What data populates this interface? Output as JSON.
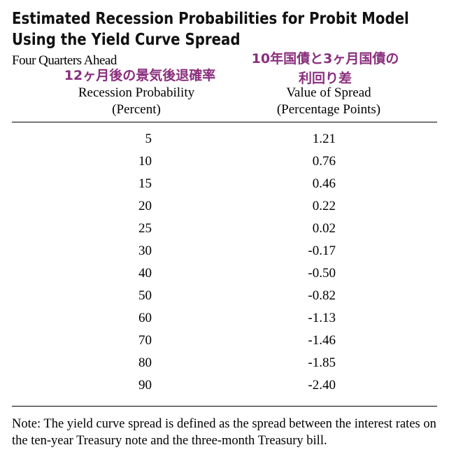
{
  "title": {
    "line1": "Estimated Recession Probabilities for Probit Model",
    "line2": "Using the Yield Curve Spread"
  },
  "subhead": "Four Quarters Ahead",
  "annotations": {
    "left": "12ヶ月後の景気後退確率",
    "right_line1": "10年国債と3ヶ月国債の",
    "right_line2": "利回り差"
  },
  "colors": {
    "annotation": "#8a2f7d",
    "text": "#000000"
  },
  "columns": {
    "probability": {
      "line1": "Recession Probability",
      "line2": "(Percent)"
    },
    "spread": {
      "line1": "Value of Spread",
      "line2": "(Percentage Points)"
    }
  },
  "rows": [
    {
      "probability": "5",
      "spread": "1.21"
    },
    {
      "probability": "10",
      "spread": "0.76"
    },
    {
      "probability": "15",
      "spread": "0.46"
    },
    {
      "probability": "20",
      "spread": "0.22"
    },
    {
      "probability": "25",
      "spread": "0.02"
    },
    {
      "probability": "30",
      "spread": "-0.17"
    },
    {
      "probability": "40",
      "spread": "-0.50"
    },
    {
      "probability": "50",
      "spread": "-0.82"
    },
    {
      "probability": "60",
      "spread": "-1.13"
    },
    {
      "probability": "70",
      "spread": "-1.46"
    },
    {
      "probability": "80",
      "spread": "-1.85"
    },
    {
      "probability": "90",
      "spread": "-2.40"
    }
  ],
  "note": "Note:  The yield curve spread is defined as the spread between the interest rates on the ten-year Treasury note and the three-month Treasury bill."
}
